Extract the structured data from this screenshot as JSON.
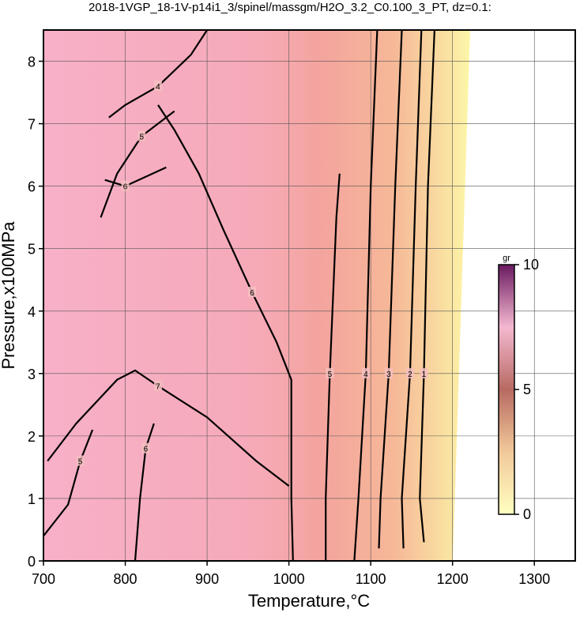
{
  "chart_data": {
    "type": "contour",
    "title": "2018-1VGP_18-1V-p14i1_3/spinel/massgm/H2O_3.2_C0.100_3_PT, dz=0.1:",
    "xlabel": "Temperature,°C",
    "ylabel": "Pressure,x100MPa",
    "xlim": [
      700,
      1350
    ],
    "ylim": [
      0,
      8.5
    ],
    "xticks": [
      700,
      800,
      900,
      1000,
      1100,
      1200,
      1300
    ],
    "yticks": [
      0,
      1,
      2,
      3,
      4,
      5,
      6,
      7,
      8
    ],
    "grid": true,
    "line_color": "#000000",
    "contours": [
      {
        "level": 1,
        "x": [
          1165,
          1160,
          1165,
          1170,
          1178
        ],
        "y": [
          0.3,
          1,
          3,
          6,
          8.5
        ]
      },
      {
        "level": 2,
        "x": [
          1140,
          1138,
          1148,
          1155,
          1162
        ],
        "y": [
          0.2,
          1,
          3,
          6,
          8.5
        ]
      },
      {
        "level": 3,
        "x": [
          1110,
          1112,
          1122,
          1130,
          1138
        ],
        "y": [
          0.2,
          1,
          3,
          6,
          8.5
        ]
      },
      {
        "level": 4,
        "x": [
          1080,
          1085,
          1094,
          1100,
          1108
        ],
        "y": [
          0,
          1,
          3,
          6,
          8.5
        ]
      },
      {
        "level": 5,
        "x": [
          1045,
          1045,
          1050,
          1058,
          1062
        ],
        "y": [
          0,
          1,
          3,
          5.5,
          6.2
        ]
      },
      {
        "level": 6,
        "x": [
          1005,
          1003,
          1003,
          985,
          955,
          920,
          890,
          860,
          840
        ],
        "y": [
          0,
          1,
          2.9,
          3.5,
          4.3,
          5.3,
          6.2,
          6.9,
          7.3
        ]
      },
      {
        "level": 7,
        "x": [
          705,
          740,
          790,
          812,
          840,
          900,
          960,
          1000
        ],
        "y": [
          1.6,
          2.2,
          2.9,
          3.05,
          2.8,
          2.3,
          1.6,
          1.2
        ]
      },
      {
        "level": 6,
        "x": [
          812,
          818,
          825,
          835
        ],
        "y": [
          0,
          1,
          1.8,
          2.2
        ]
      },
      {
        "level": 5,
        "x": [
          700,
          730,
          745,
          760
        ],
        "y": [
          0.4,
          0.9,
          1.6,
          2.1
        ]
      },
      {
        "level": 4,
        "x": [
          780,
          800,
          840,
          880,
          900
        ],
        "y": [
          7.1,
          7.3,
          7.6,
          8.1,
          8.5
        ]
      },
      {
        "level": 5,
        "x": [
          770,
          790,
          820,
          860
        ],
        "y": [
          5.5,
          6.2,
          6.8,
          7.2
        ]
      },
      {
        "level": 6,
        "x": [
          775,
          800,
          850
        ],
        "y": [
          6.1,
          6.0,
          6.3
        ]
      }
    ],
    "colorbar": {
      "label": "gr",
      "lim": [
        0,
        10
      ],
      "ticks": [
        0,
        5,
        10
      ]
    }
  }
}
